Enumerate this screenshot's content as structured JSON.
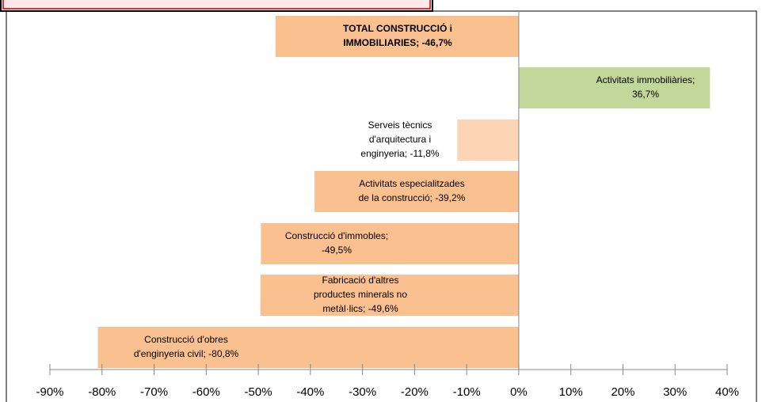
{
  "chart_data": {
    "type": "barh",
    "values": [
      -46.7,
      36.7,
      -11.8,
      -39.2,
      -49.5,
      -49.6,
      -80.8
    ],
    "value_labels": [
      [
        "TOTAL CONSTRUCCIÓ i",
        "IMMOBILIARIES;  -46,7%"
      ],
      [
        "Activitats immobiliàries;",
        "36,7%"
      ],
      [
        "Serveis tècnics",
        "d'arquitectura i",
        "enginyeria; -11,8%"
      ],
      [
        "Activitats especialitzades",
        "de la construcció; -39,2%"
      ],
      [
        "Construcció d'immobles;",
        "-49,5%"
      ],
      [
        "Fabricació d'altres",
        "productes minerals no",
        "metàl·lics; -49,6%"
      ],
      [
        "Construcció d'obres",
        "d'enginyeria civil; -80,8%"
      ]
    ],
    "colors": [
      "#fac090",
      "#c4d79b",
      "#fcd5b4",
      "#fac090",
      "#fac090",
      "#fac090",
      "#fac090"
    ],
    "xlim": [
      -90,
      40
    ],
    "xticks": [
      {
        "value": -90,
        "label": "-90%"
      },
      {
        "value": -80,
        "label": "-80%"
      },
      {
        "value": -70,
        "label": "-70%"
      },
      {
        "value": -60,
        "label": "-60%"
      },
      {
        "value": -50,
        "label": "-50%"
      },
      {
        "value": -40,
        "label": "-40%"
      },
      {
        "value": -30,
        "label": "-30%"
      },
      {
        "value": -20,
        "label": "-20%"
      },
      {
        "value": -10,
        "label": "-10%"
      },
      {
        "value": 0,
        "label": "0%"
      },
      {
        "value": 10,
        "label": "10%"
      },
      {
        "value": 20,
        "label": "20%"
      },
      {
        "value": 30,
        "label": "30%"
      },
      {
        "value": 40,
        "label": "40%"
      }
    ]
  }
}
